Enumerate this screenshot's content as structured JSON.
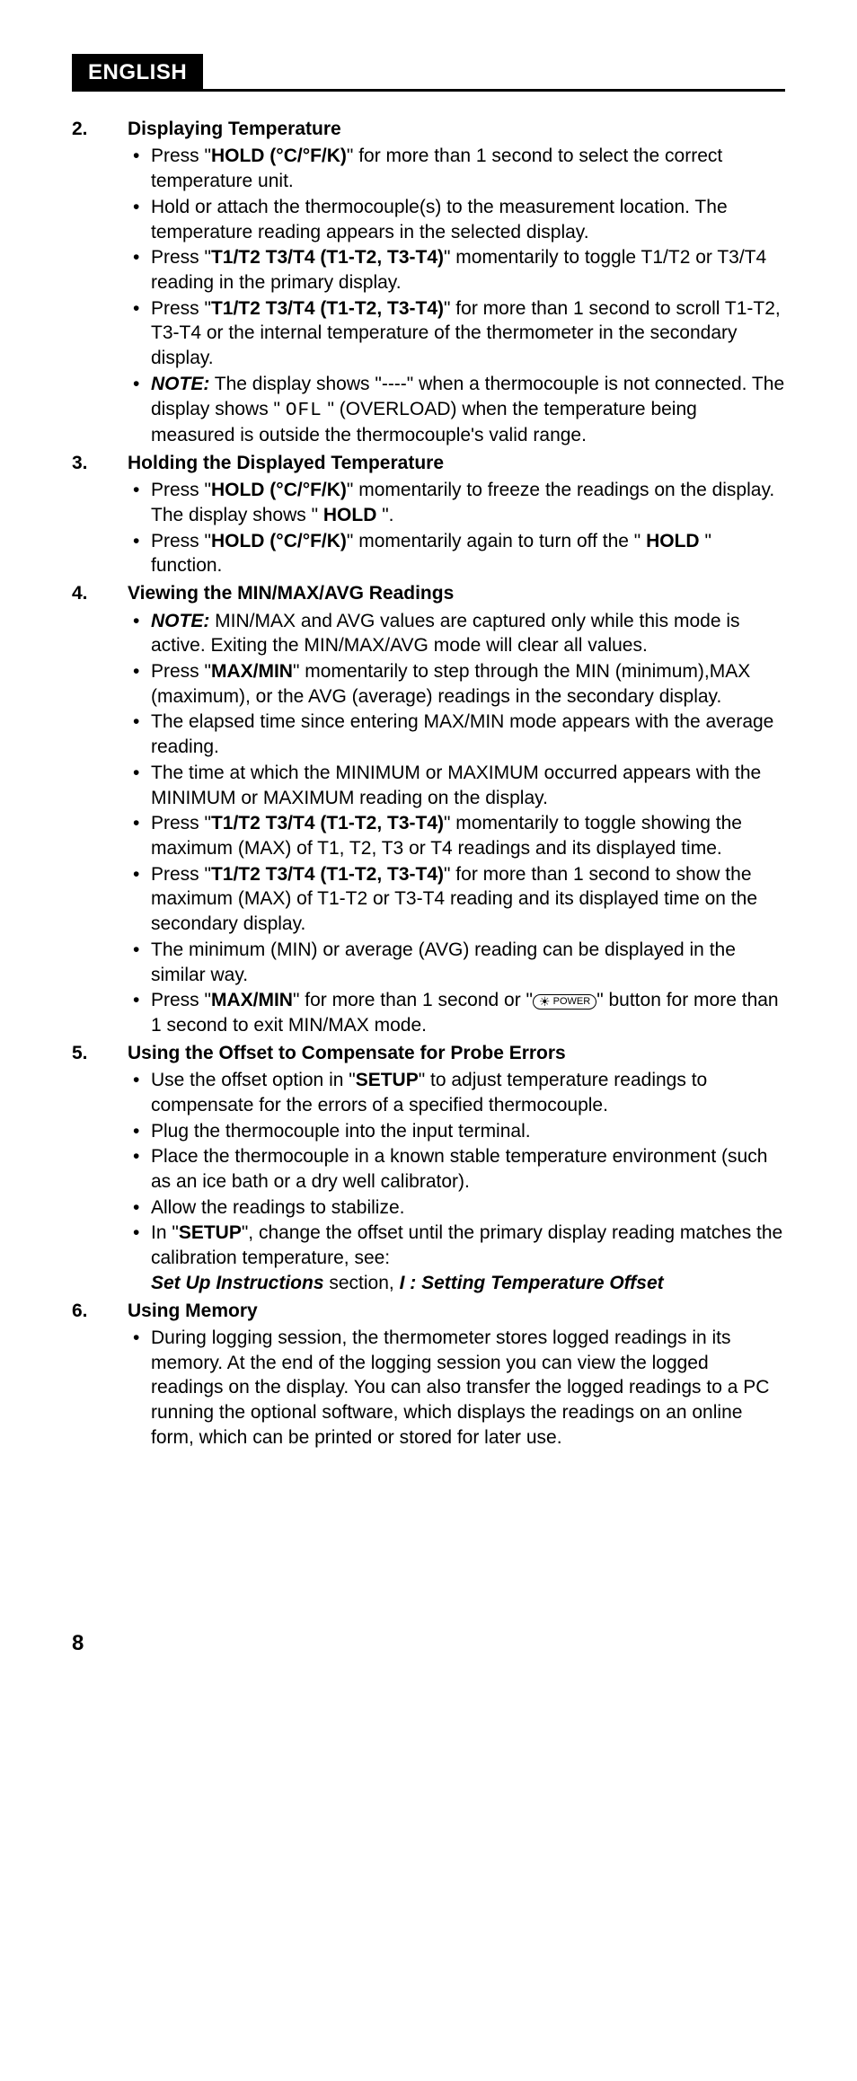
{
  "header": {
    "tab": "ENGLISH"
  },
  "page_number": "8",
  "tokens": {
    "hold_key": "HOLD (°C/°F/K)",
    "t_key": "T1/T2 T3/T4 (T1-T2, T3-T4)",
    "note": "NOTE:",
    "hold": "HOLD",
    "maxmin": "MAX/MIN",
    "setup": "SETUP",
    "ofl": "OFL",
    "power": "POWER"
  },
  "sections": [
    {
      "num": "2.",
      "title": "Displaying Temperature",
      "items": [
        {
          "type": "hold_select_unit",
          "t1": "Press \"",
          "t2": "\" for more than 1 second to select the correct temperature unit."
        },
        {
          "type": "plain",
          "text": "Hold or attach the thermocouple(s) to the measurement location. The temperature reading appears in the selected display."
        },
        {
          "type": "tkey",
          "t1": "Press \"",
          "t2": "\" momentarily to toggle T1/T2 or T3/T4 reading in the primary display."
        },
        {
          "type": "tkey",
          "t1": "Press \"",
          "t2": "\" for more than 1 second to scroll T1-T2, T3-T4 or the internal temperature of the thermometer in the secondary display."
        },
        {
          "type": "note_ofl",
          "t1": " The display shows \"----\" when a thermocouple is not connected. The display shows \" ",
          "t2": " \" (OVERLOAD) when the temperature being measured is outside the thermocouple's valid range."
        }
      ]
    },
    {
      "num": "3.",
      "title": "Holding the Displayed Temperature",
      "items": [
        {
          "type": "hold_freeze",
          "t1": "Press \"",
          "t2": "\" momentarily to freeze the readings on the display. The display shows \" ",
          "t3": " \"."
        },
        {
          "type": "hold_off",
          "t1": "Press \"",
          "t2": "\" momentarily again to turn off the \" ",
          "t3": " \" function."
        }
      ]
    },
    {
      "num": "4.",
      "title": "Viewing the MIN/MAX/AVG Readings",
      "items": [
        {
          "type": "note_plain",
          "text": " MIN/MAX and AVG values are captured only while this mode is active. Exiting the MIN/MAX/AVG mode will clear all values."
        },
        {
          "type": "maxmin",
          "t1": "Press \"",
          "t2": "\" momentarily to step through the MIN (minimum),MAX (maximum), or the AVG (average) readings in the secondary display."
        },
        {
          "type": "plain",
          "text": "The elapsed time since entering MAX/MIN mode appears with the average reading."
        },
        {
          "type": "plain",
          "text": "The time at which the MINIMUM or MAXIMUM occurred appears with the MINIMUM or MAXIMUM reading on the display."
        },
        {
          "type": "tkey",
          "t1": "Press \"",
          "t2": "\" momentarily to toggle showing the maximum (MAX) of T1, T2, T3 or T4 readings and its displayed time."
        },
        {
          "type": "tkey",
          "t1": "Press \"",
          "t2": "\" for more than 1 second to show the maximum (MAX) of T1-T2 or T3-T4 reading and its displayed time on the secondary display."
        },
        {
          "type": "plain",
          "text": "The minimum (MIN) or average (AVG) reading can be displayed in the similar way."
        },
        {
          "type": "maxmin_power",
          "t1": "Press \"",
          "t2": "\" for more than 1 second or \"",
          "t3": "\" button for more than 1 second to exit MIN/MAX mode."
        }
      ]
    },
    {
      "num": "5.",
      "title": "Using the Offset to Compensate for Probe Errors",
      "items": [
        {
          "type": "setup",
          "t1": "Use the offset option in \"",
          "t2": "\" to adjust temperature readings to compensate for the errors of a specified thermocouple."
        },
        {
          "type": "plain",
          "text": "Plug the thermocouple into the input terminal."
        },
        {
          "type": "plain",
          "text": "Place the thermocouple in a known stable temperature environment (such as an ice bath or a dry well calibrator)."
        },
        {
          "type": "plain",
          "text": "Allow the readings to stabilize."
        },
        {
          "type": "setup_ref",
          "t1": "In \"",
          "t2": "\", change the offset until the primary display reading matches the calibration temperature, see:",
          "ref1": "Set Up Instructions",
          "ref2": " section, ",
          "ref3": "I : Setting Temperature Offset"
        }
      ]
    },
    {
      "num": "6.",
      "title": "Using Memory",
      "items": [
        {
          "type": "plain",
          "text": "During logging session, the thermometer stores logged readings in its memory. At the end of the logging session you can view the logged readings on the display. You can also transfer the logged readings to a PC running the optional software, which displays the readings on an online form, which can be printed or stored for later use."
        }
      ]
    }
  ]
}
